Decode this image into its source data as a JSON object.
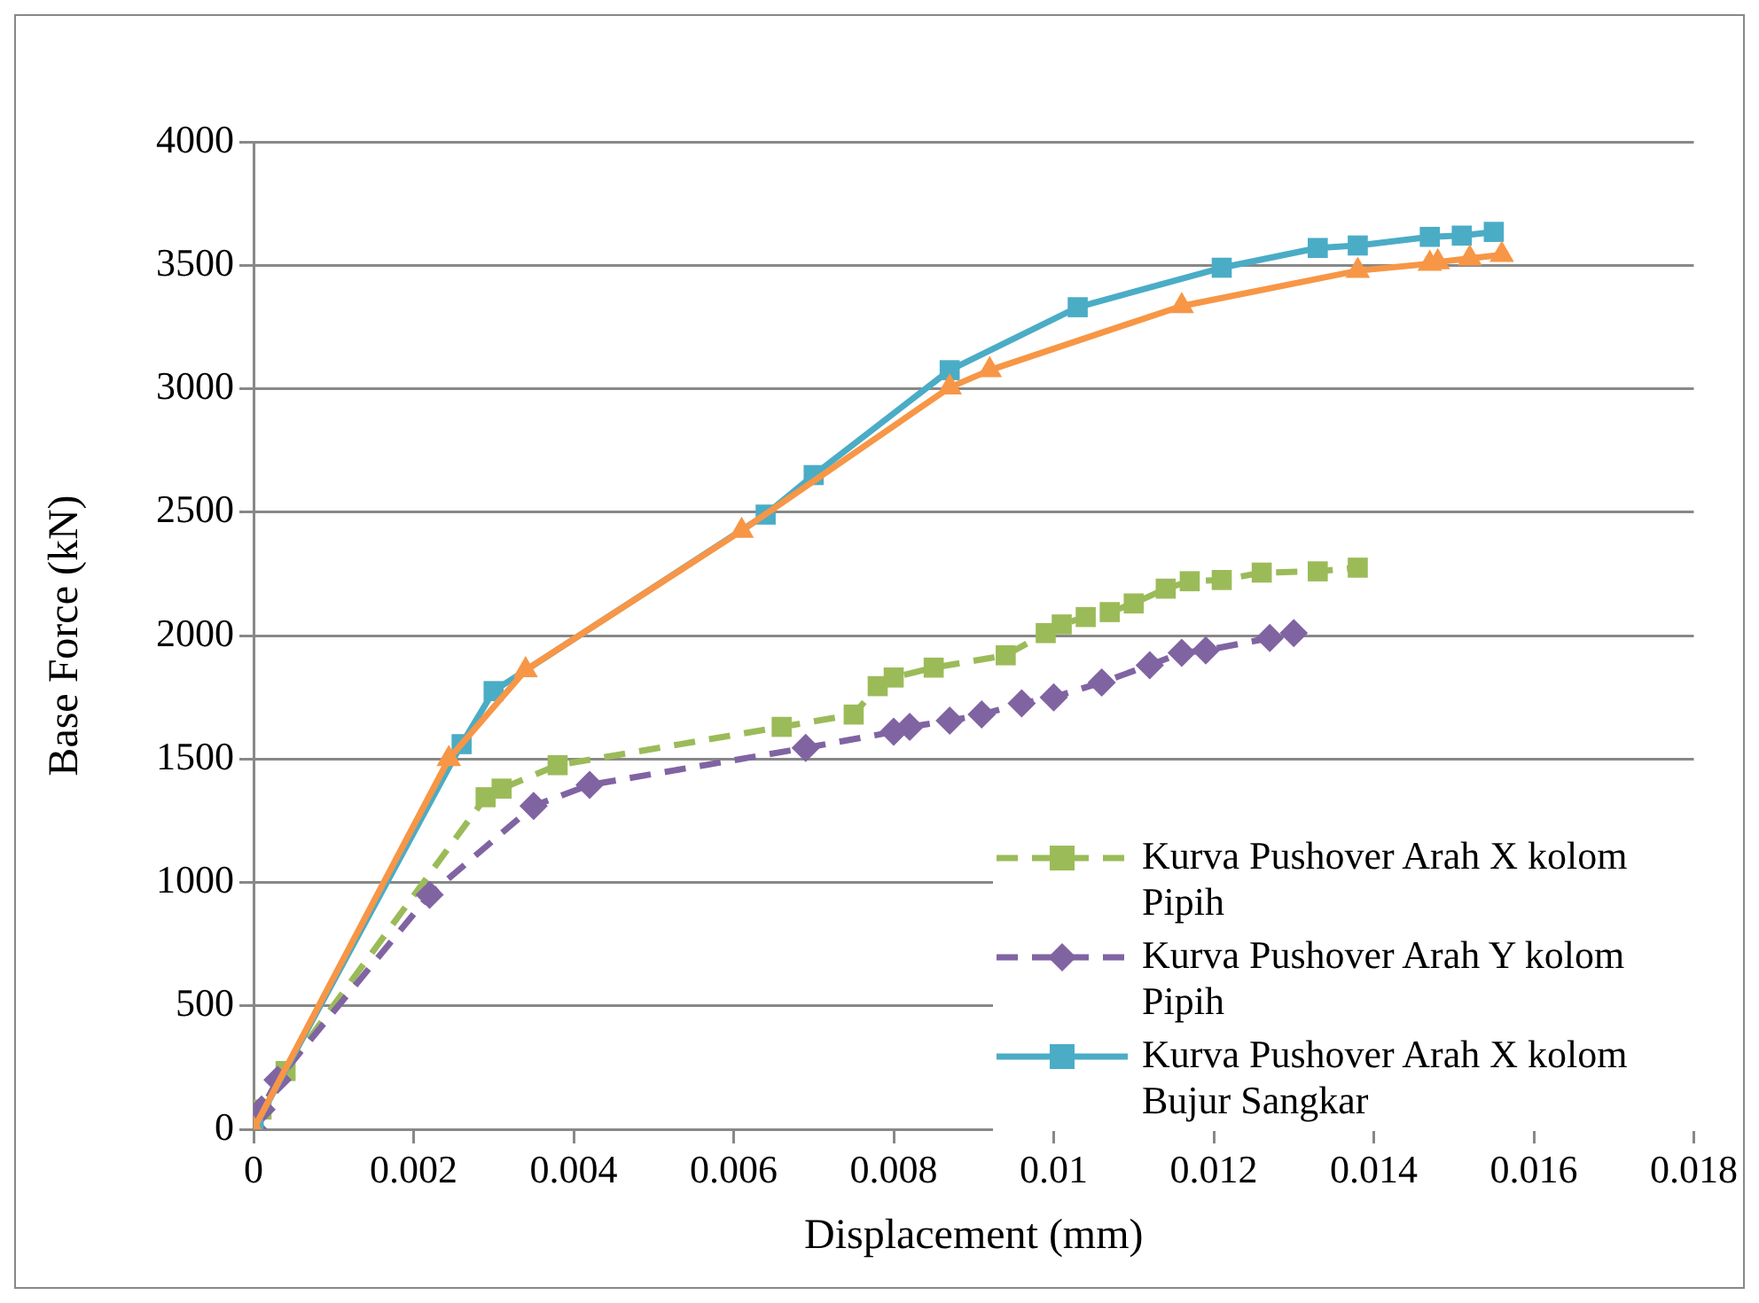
{
  "chart_data": {
    "type": "line",
    "xlabel": "Displacement (mm)",
    "ylabel": "Base Force (kN)",
    "xlim": [
      0,
      0.018
    ],
    "xticks": [
      0,
      0.002,
      0.004,
      0.006,
      0.008,
      0.01,
      0.012,
      0.014,
      0.016,
      0.018
    ],
    "ylim": [
      0,
      4000
    ],
    "yticks": [
      0,
      500,
      1000,
      1500,
      2000,
      2500,
      3000,
      3500,
      4000
    ],
    "grid": "y",
    "legend": "bottom right",
    "series": [
      {
        "name": "Kurva Pushover Arah X kolom Pipih",
        "color": "#9bbb59",
        "marker": "square",
        "line_style": "dashed",
        "x": [
          0,
          0.0001,
          0.0004,
          0.0029,
          0.0031,
          0.0038,
          0.0066,
          0.0075,
          0.0078,
          0.008,
          0.0085,
          0.0094,
          0.0099,
          0.0101,
          0.0104,
          0.0107,
          0.011,
          0.0114,
          0.0117,
          0.0121,
          0.0126,
          0.0133,
          0.0138
        ],
        "values": [
          0,
          80,
          236,
          1345,
          1380,
          1475,
          1630,
          1680,
          1795,
          1830,
          1870,
          1920,
          2010,
          2045,
          2075,
          2095,
          2130,
          2190,
          2220,
          2225,
          2255,
          2260,
          2275
        ]
      },
      {
        "name": "Kurva Pushover Arah Y kolom Pipih",
        "color": "#8064a2",
        "marker": "diamond",
        "line_style": "dashed",
        "x": [
          0,
          0.0001,
          0.0003,
          0.0022,
          0.0035,
          0.0042,
          0.0069,
          0.008,
          0.0082,
          0.0087,
          0.0091,
          0.0096,
          0.01,
          0.0106,
          0.0112,
          0.0116,
          0.0119,
          0.0127,
          0.013
        ],
        "values": [
          0,
          80,
          200,
          950,
          1310,
          1395,
          1545,
          1610,
          1630,
          1655,
          1680,
          1725,
          1750,
          1810,
          1880,
          1930,
          1940,
          1990,
          2010
        ]
      },
      {
        "name": "Kurva Pushover Arah X kolom Bujur Sangkar",
        "color": "#4bacc6",
        "marker": "square",
        "line_style": "solid",
        "x": [
          0,
          0.0026,
          0.003,
          0.0064,
          0.007,
          0.0087,
          0.0103,
          0.0121,
          0.0133,
          0.0138,
          0.0147,
          0.0151,
          0.0155
        ],
        "values": [
          0,
          1560,
          1775,
          2490,
          2650,
          3075,
          3330,
          3490,
          3570,
          3580,
          3615,
          3620,
          3635
        ]
      },
      {
        "color": "#f79646",
        "marker": "triangle",
        "line_style": "solid",
        "x": [
          0,
          0.00244,
          0.0034,
          0.0061,
          0.0087,
          0.0092,
          0.0116,
          0.0138,
          0.0147,
          0.0148,
          0.0152,
          0.0156
        ],
        "values": [
          0,
          1500,
          1860,
          2425,
          3005,
          3075,
          3335,
          3478,
          3506,
          3513,
          3528,
          3542
        ]
      }
    ]
  }
}
